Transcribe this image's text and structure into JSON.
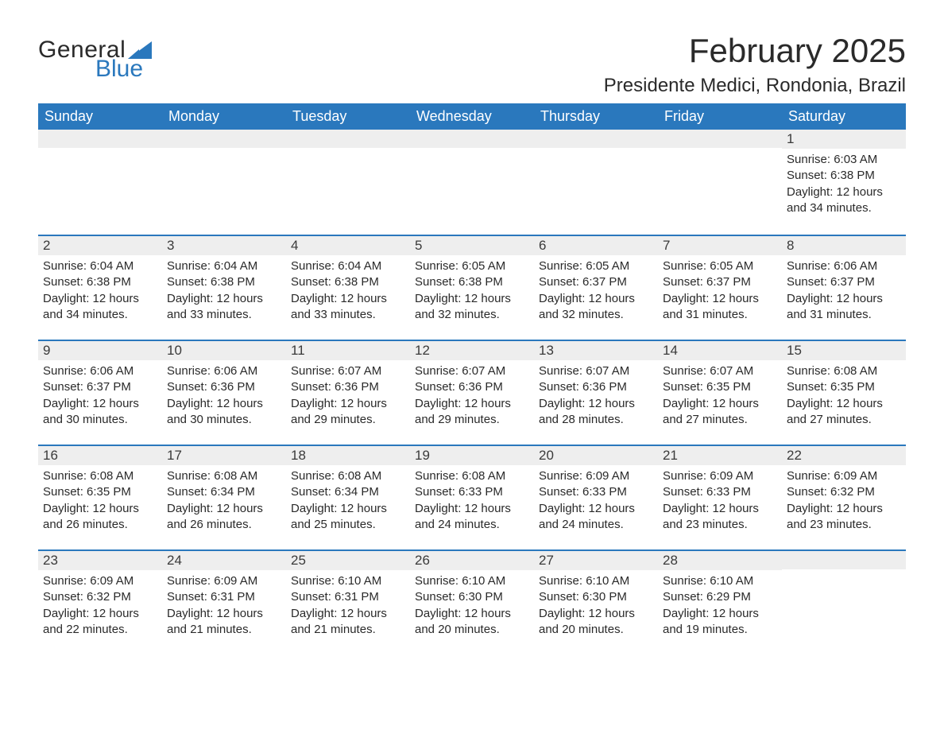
{
  "logo": {
    "text1": "General",
    "text2": "Blue",
    "sail_color": "#2a78bd"
  },
  "header": {
    "month_title": "February 2025",
    "location": "Presidente Medici, Rondonia, Brazil"
  },
  "colors": {
    "header_bg": "#2a78bd",
    "header_text": "#ffffff",
    "daynum_bg": "#eeeeee",
    "week_divider": "#2a78bd",
    "body_text": "#2a2a2a"
  },
  "day_names": [
    "Sunday",
    "Monday",
    "Tuesday",
    "Wednesday",
    "Thursday",
    "Friday",
    "Saturday"
  ],
  "weeks": [
    [
      null,
      null,
      null,
      null,
      null,
      null,
      {
        "n": "1",
        "sunrise": "Sunrise: 6:03 AM",
        "sunset": "Sunset: 6:38 PM",
        "dl1": "Daylight: 12 hours",
        "dl2": "and 34 minutes."
      }
    ],
    [
      {
        "n": "2",
        "sunrise": "Sunrise: 6:04 AM",
        "sunset": "Sunset: 6:38 PM",
        "dl1": "Daylight: 12 hours",
        "dl2": "and 34 minutes."
      },
      {
        "n": "3",
        "sunrise": "Sunrise: 6:04 AM",
        "sunset": "Sunset: 6:38 PM",
        "dl1": "Daylight: 12 hours",
        "dl2": "and 33 minutes."
      },
      {
        "n": "4",
        "sunrise": "Sunrise: 6:04 AM",
        "sunset": "Sunset: 6:38 PM",
        "dl1": "Daylight: 12 hours",
        "dl2": "and 33 minutes."
      },
      {
        "n": "5",
        "sunrise": "Sunrise: 6:05 AM",
        "sunset": "Sunset: 6:38 PM",
        "dl1": "Daylight: 12 hours",
        "dl2": "and 32 minutes."
      },
      {
        "n": "6",
        "sunrise": "Sunrise: 6:05 AM",
        "sunset": "Sunset: 6:37 PM",
        "dl1": "Daylight: 12 hours",
        "dl2": "and 32 minutes."
      },
      {
        "n": "7",
        "sunrise": "Sunrise: 6:05 AM",
        "sunset": "Sunset: 6:37 PM",
        "dl1": "Daylight: 12 hours",
        "dl2": "and 31 minutes."
      },
      {
        "n": "8",
        "sunrise": "Sunrise: 6:06 AM",
        "sunset": "Sunset: 6:37 PM",
        "dl1": "Daylight: 12 hours",
        "dl2": "and 31 minutes."
      }
    ],
    [
      {
        "n": "9",
        "sunrise": "Sunrise: 6:06 AM",
        "sunset": "Sunset: 6:37 PM",
        "dl1": "Daylight: 12 hours",
        "dl2": "and 30 minutes."
      },
      {
        "n": "10",
        "sunrise": "Sunrise: 6:06 AM",
        "sunset": "Sunset: 6:36 PM",
        "dl1": "Daylight: 12 hours",
        "dl2": "and 30 minutes."
      },
      {
        "n": "11",
        "sunrise": "Sunrise: 6:07 AM",
        "sunset": "Sunset: 6:36 PM",
        "dl1": "Daylight: 12 hours",
        "dl2": "and 29 minutes."
      },
      {
        "n": "12",
        "sunrise": "Sunrise: 6:07 AM",
        "sunset": "Sunset: 6:36 PM",
        "dl1": "Daylight: 12 hours",
        "dl2": "and 29 minutes."
      },
      {
        "n": "13",
        "sunrise": "Sunrise: 6:07 AM",
        "sunset": "Sunset: 6:36 PM",
        "dl1": "Daylight: 12 hours",
        "dl2": "and 28 minutes."
      },
      {
        "n": "14",
        "sunrise": "Sunrise: 6:07 AM",
        "sunset": "Sunset: 6:35 PM",
        "dl1": "Daylight: 12 hours",
        "dl2": "and 27 minutes."
      },
      {
        "n": "15",
        "sunrise": "Sunrise: 6:08 AM",
        "sunset": "Sunset: 6:35 PM",
        "dl1": "Daylight: 12 hours",
        "dl2": "and 27 minutes."
      }
    ],
    [
      {
        "n": "16",
        "sunrise": "Sunrise: 6:08 AM",
        "sunset": "Sunset: 6:35 PM",
        "dl1": "Daylight: 12 hours",
        "dl2": "and 26 minutes."
      },
      {
        "n": "17",
        "sunrise": "Sunrise: 6:08 AM",
        "sunset": "Sunset: 6:34 PM",
        "dl1": "Daylight: 12 hours",
        "dl2": "and 26 minutes."
      },
      {
        "n": "18",
        "sunrise": "Sunrise: 6:08 AM",
        "sunset": "Sunset: 6:34 PM",
        "dl1": "Daylight: 12 hours",
        "dl2": "and 25 minutes."
      },
      {
        "n": "19",
        "sunrise": "Sunrise: 6:08 AM",
        "sunset": "Sunset: 6:33 PM",
        "dl1": "Daylight: 12 hours",
        "dl2": "and 24 minutes."
      },
      {
        "n": "20",
        "sunrise": "Sunrise: 6:09 AM",
        "sunset": "Sunset: 6:33 PM",
        "dl1": "Daylight: 12 hours",
        "dl2": "and 24 minutes."
      },
      {
        "n": "21",
        "sunrise": "Sunrise: 6:09 AM",
        "sunset": "Sunset: 6:33 PM",
        "dl1": "Daylight: 12 hours",
        "dl2": "and 23 minutes."
      },
      {
        "n": "22",
        "sunrise": "Sunrise: 6:09 AM",
        "sunset": "Sunset: 6:32 PM",
        "dl1": "Daylight: 12 hours",
        "dl2": "and 23 minutes."
      }
    ],
    [
      {
        "n": "23",
        "sunrise": "Sunrise: 6:09 AM",
        "sunset": "Sunset: 6:32 PM",
        "dl1": "Daylight: 12 hours",
        "dl2": "and 22 minutes."
      },
      {
        "n": "24",
        "sunrise": "Sunrise: 6:09 AM",
        "sunset": "Sunset: 6:31 PM",
        "dl1": "Daylight: 12 hours",
        "dl2": "and 21 minutes."
      },
      {
        "n": "25",
        "sunrise": "Sunrise: 6:10 AM",
        "sunset": "Sunset: 6:31 PM",
        "dl1": "Daylight: 12 hours",
        "dl2": "and 21 minutes."
      },
      {
        "n": "26",
        "sunrise": "Sunrise: 6:10 AM",
        "sunset": "Sunset: 6:30 PM",
        "dl1": "Daylight: 12 hours",
        "dl2": "and 20 minutes."
      },
      {
        "n": "27",
        "sunrise": "Sunrise: 6:10 AM",
        "sunset": "Sunset: 6:30 PM",
        "dl1": "Daylight: 12 hours",
        "dl2": "and 20 minutes."
      },
      {
        "n": "28",
        "sunrise": "Sunrise: 6:10 AM",
        "sunset": "Sunset: 6:29 PM",
        "dl1": "Daylight: 12 hours",
        "dl2": "and 19 minutes."
      },
      null
    ]
  ]
}
